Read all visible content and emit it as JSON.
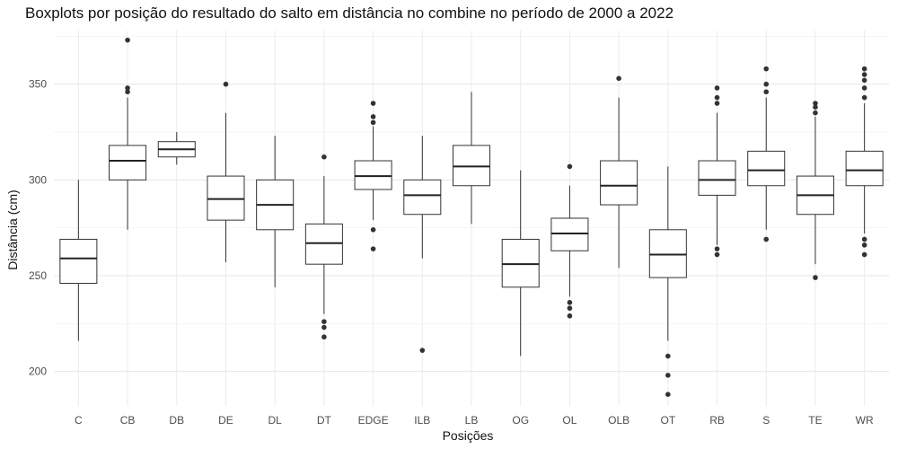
{
  "chart_data": {
    "type": "boxplot",
    "title": "Boxplots por posição do resultado do salto em distância no combine no período de 2000 a 2022",
    "xlabel": "Posições",
    "ylabel": "Distância (cm)",
    "ylim": [
      182,
      378
    ],
    "yticks": [
      200,
      250,
      300,
      350
    ],
    "grid": true,
    "categories": [
      "C",
      "CB",
      "DB",
      "DE",
      "DL",
      "DT",
      "EDGE",
      "ILB",
      "LB",
      "OG",
      "OL",
      "OLB",
      "OT",
      "RB",
      "S",
      "TE",
      "WR"
    ],
    "boxes": [
      {
        "label": "C",
        "whisker_low": 216,
        "q1": 246,
        "median": 259,
        "q3": 269,
        "whisker_high": 300,
        "outliers": []
      },
      {
        "label": "CB",
        "whisker_low": 274,
        "q1": 300,
        "median": 310,
        "q3": 318,
        "whisker_high": 343,
        "outliers": [
          346,
          348,
          373
        ]
      },
      {
        "label": "DB",
        "whisker_low": 308,
        "q1": 312,
        "median": 316,
        "q3": 320,
        "whisker_high": 325,
        "outliers": []
      },
      {
        "label": "DE",
        "whisker_low": 257,
        "q1": 279,
        "median": 290,
        "q3": 302,
        "whisker_high": 335,
        "outliers": [
          350
        ]
      },
      {
        "label": "DL",
        "whisker_low": 244,
        "q1": 274,
        "median": 287,
        "q3": 300,
        "whisker_high": 323,
        "outliers": []
      },
      {
        "label": "DT",
        "whisker_low": 230,
        "q1": 256,
        "median": 267,
        "q3": 277,
        "whisker_high": 302,
        "outliers": [
          312,
          226,
          223,
          218
        ]
      },
      {
        "label": "EDGE",
        "whisker_low": 279,
        "q1": 295,
        "median": 302,
        "q3": 310,
        "whisker_high": 328,
        "outliers": [
          340,
          333,
          330,
          274,
          264
        ]
      },
      {
        "label": "ILB",
        "whisker_low": 259,
        "q1": 282,
        "median": 292,
        "q3": 300,
        "whisker_high": 323,
        "outliers": [
          211
        ]
      },
      {
        "label": "LB",
        "whisker_low": 277,
        "q1": 297,
        "median": 307,
        "q3": 318,
        "whisker_high": 346,
        "outliers": []
      },
      {
        "label": "OG",
        "whisker_low": 208,
        "q1": 244,
        "median": 256,
        "q3": 269,
        "whisker_high": 305,
        "outliers": []
      },
      {
        "label": "OL",
        "whisker_low": 239,
        "q1": 263,
        "median": 272,
        "q3": 280,
        "whisker_high": 297,
        "outliers": [
          307,
          236,
          233,
          229
        ]
      },
      {
        "label": "OLB",
        "whisker_low": 254,
        "q1": 287,
        "median": 297,
        "q3": 310,
        "whisker_high": 343,
        "outliers": [
          353
        ]
      },
      {
        "label": "OT",
        "whisker_low": 216,
        "q1": 249,
        "median": 261,
        "q3": 274,
        "whisker_high": 307,
        "outliers": [
          208,
          198,
          188
        ]
      },
      {
        "label": "RB",
        "whisker_low": 266,
        "q1": 292,
        "median": 300,
        "q3": 310,
        "whisker_high": 335,
        "outliers": [
          348,
          343,
          340,
          264,
          261
        ]
      },
      {
        "label": "S",
        "whisker_low": 274,
        "q1": 297,
        "median": 305,
        "q3": 315,
        "whisker_high": 343,
        "outliers": [
          358,
          350,
          346,
          269
        ]
      },
      {
        "label": "TE",
        "whisker_low": 256,
        "q1": 282,
        "median": 292,
        "q3": 302,
        "whisker_high": 333,
        "outliers": [
          340,
          338,
          335,
          249
        ]
      },
      {
        "label": "WR",
        "whisker_low": 272,
        "q1": 297,
        "median": 305,
        "q3": 315,
        "whisker_high": 340,
        "outliers": [
          358,
          355,
          352,
          348,
          343,
          269,
          266,
          261
        ]
      }
    ]
  }
}
